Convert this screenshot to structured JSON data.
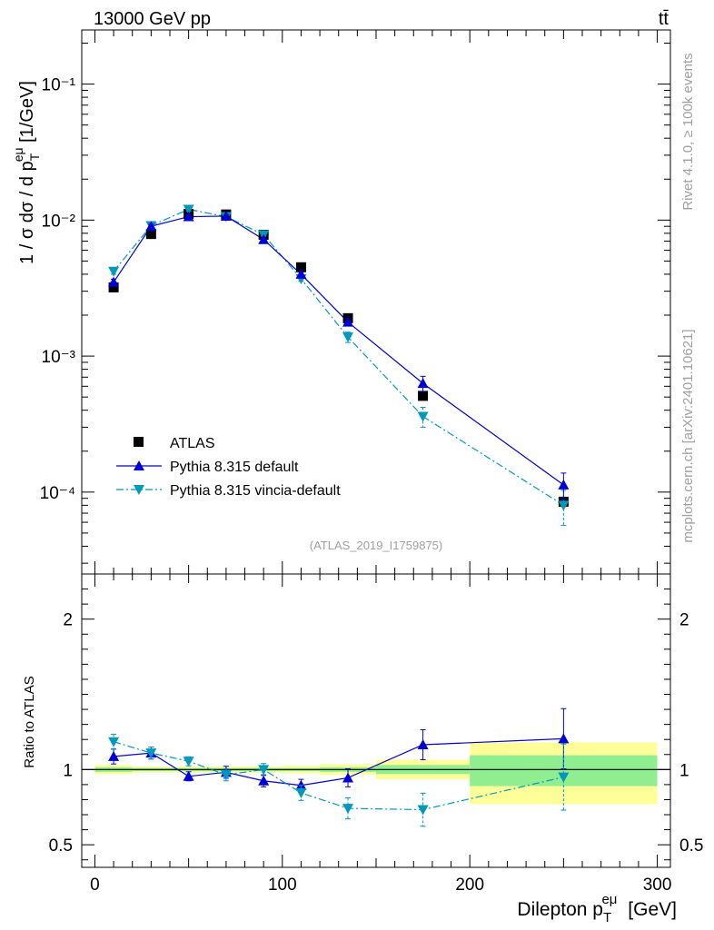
{
  "header": {
    "energy_label": "13000 GeV pp",
    "process_label": "tt̄",
    "analysis_tag": "(ATLAS_2019_I1759875)",
    "side_rivet": "Rivet 4.1.0, ≥ 100k events",
    "side_mcplots": "mcplots.cern.ch [arXiv:2401.10621]"
  },
  "chart_data": [
    {
      "type": "scatter",
      "panel": "main",
      "yscale": "log",
      "ylabel": "1 / σ dσ / d p_T^eμ [1/GeV]",
      "ylim": [
        2.5e-05,
        0.25
      ],
      "xlim": [
        -7,
        307
      ],
      "ytick_labels": [
        "10⁻⁴",
        "10⁻³",
        "10⁻²",
        "10⁻¹"
      ],
      "ytick_values": [
        0.0001,
        0.001,
        0.01,
        0.1
      ],
      "legend_position": "lower-left",
      "series": [
        {
          "name": "ATLAS",
          "marker": "square",
          "color": "#000000",
          "x": [
            10,
            30,
            50,
            70,
            90,
            110,
            135,
            175,
            250
          ],
          "y": [
            0.0032,
            0.0079,
            0.0111,
            0.011,
            0.0078,
            0.0045,
            0.0019,
            0.00051,
            8.5e-05
          ]
        },
        {
          "name": "Pythia 8.315 default",
          "marker": "triangle-up",
          "line": "solid",
          "color": "#0000d6",
          "x": [
            10,
            30,
            50,
            70,
            90,
            110,
            135,
            175,
            250
          ],
          "y": [
            0.0035,
            0.009,
            0.0106,
            0.0107,
            0.0072,
            0.004,
            0.00178,
            0.00063,
            0.000113
          ],
          "yerr": [
            0.00018,
            0.0003,
            0.0003,
            0.0003,
            0.0002,
            0.00015,
            0.00011,
            8e-05,
            2.5e-05
          ]
        },
        {
          "name": "Pythia 8.315 vincia-default",
          "marker": "triangle-down",
          "line": "dashdot",
          "color": "#0099bb",
          "x": [
            10,
            30,
            50,
            70,
            90,
            110,
            135,
            175,
            250
          ],
          "y": [
            0.0042,
            0.0091,
            0.012,
            0.0106,
            0.0078,
            0.0037,
            0.00138,
            0.00036,
            8e-05
          ],
          "yerr": [
            0.0002,
            0.0003,
            0.0004,
            0.0003,
            0.0002,
            0.00015,
            0.00012,
            6e-05,
            2.3e-05
          ]
        }
      ]
    },
    {
      "type": "scatter",
      "panel": "ratio",
      "ylabel": "Ratio to ATLAS",
      "xlabel": "Dilepton p_T^eμ [GeV]",
      "ylim": [
        0.35,
        2.3
      ],
      "xlim": [
        -7,
        307
      ],
      "xticks": [
        0,
        100,
        200,
        300
      ],
      "yticks": [
        0.5,
        1,
        2
      ],
      "ytick_labels": [
        "0.5",
        "1",
        "2"
      ],
      "bins": [
        {
          "x0": 0,
          "x1": 20,
          "inner": [
            0.985,
            1.015
          ],
          "outer": [
            0.97,
            1.03
          ]
        },
        {
          "x0": 20,
          "x1": 40,
          "inner": [
            0.99,
            1.01
          ],
          "outer": [
            0.98,
            1.02
          ]
        },
        {
          "x0": 40,
          "x1": 60,
          "inner": [
            0.99,
            1.01
          ],
          "outer": [
            0.98,
            1.02
          ]
        },
        {
          "x0": 60,
          "x1": 80,
          "inner": [
            0.99,
            1.01
          ],
          "outer": [
            0.98,
            1.02
          ]
        },
        {
          "x0": 80,
          "x1": 100,
          "inner": [
            0.99,
            1.01
          ],
          "outer": [
            0.98,
            1.02
          ]
        },
        {
          "x0": 100,
          "x1": 120,
          "inner": [
            0.99,
            1.01
          ],
          "outer": [
            0.975,
            1.025
          ]
        },
        {
          "x0": 120,
          "x1": 150,
          "inner": [
            0.985,
            1.015
          ],
          "outer": [
            0.965,
            1.035
          ]
        },
        {
          "x0": 150,
          "x1": 200,
          "inner": [
            0.97,
            1.03
          ],
          "outer": [
            0.935,
            1.065
          ]
        },
        {
          "x0": 200,
          "x1": 300,
          "inner": [
            0.89,
            1.095
          ],
          "outer": [
            0.77,
            1.18
          ]
        }
      ],
      "series": [
        {
          "name": "Pythia 8.315 default",
          "color": "#0000d6",
          "x": [
            10,
            30,
            50,
            70,
            90,
            110,
            135,
            175,
            250
          ],
          "y": [
            1.087,
            1.11,
            0.955,
            0.982,
            0.925,
            0.895,
            0.945,
            1.165,
            1.205
          ],
          "yerr": [
            0.05,
            0.04,
            0.03,
            0.04,
            0.04,
            0.04,
            0.06,
            0.1,
            0.2
          ]
        },
        {
          "name": "Pythia 8.315 vincia-default",
          "color": "#0099bb",
          "x": [
            10,
            30,
            50,
            70,
            90,
            110,
            135,
            175,
            250
          ],
          "y": [
            1.185,
            1.11,
            1.055,
            0.965,
            1.0,
            0.845,
            0.742,
            0.733,
            0.95
          ],
          "yerr": [
            0.05,
            0.04,
            0.03,
            0.04,
            0.04,
            0.05,
            0.07,
            0.11,
            0.22
          ]
        }
      ]
    }
  ],
  "colors": {
    "band_inner": "#90ee90",
    "band_outer": "#ffff99"
  }
}
